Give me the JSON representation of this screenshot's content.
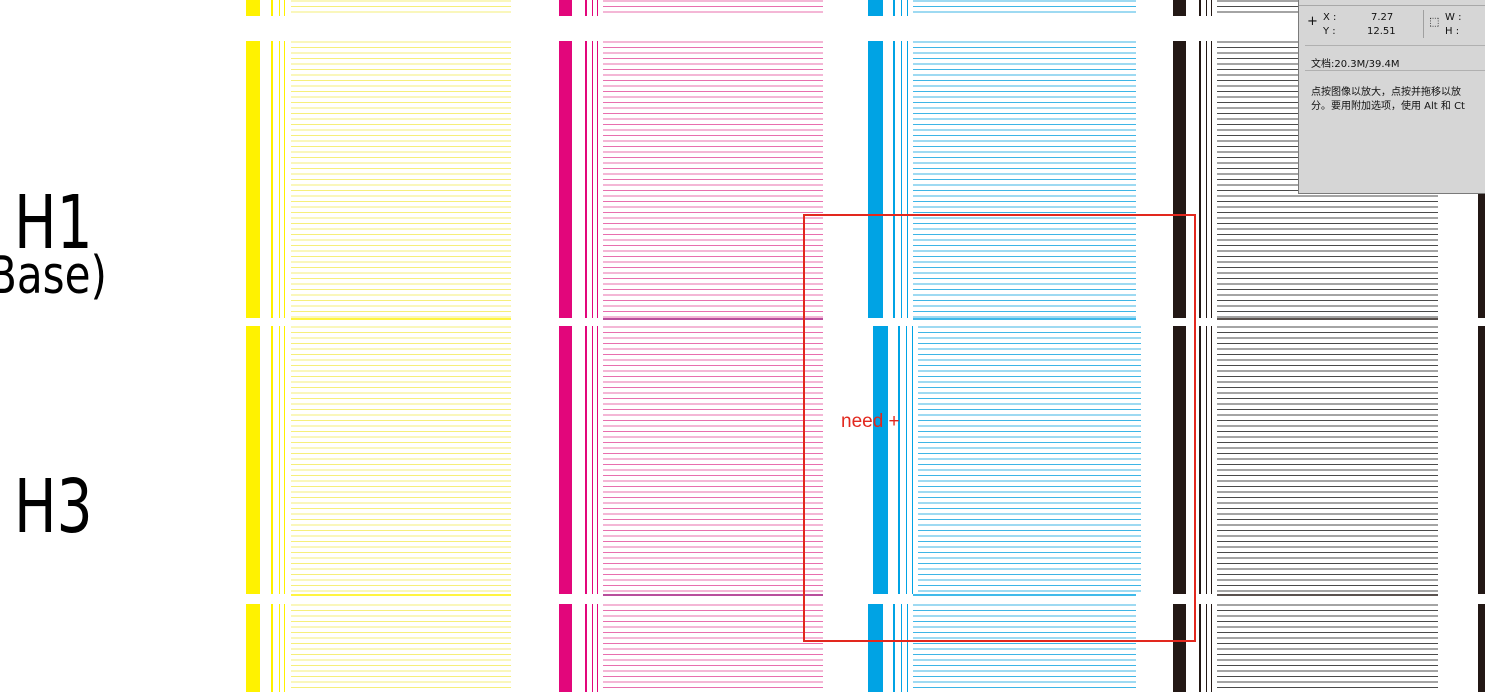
{
  "labels": {
    "h1": "H1",
    "base": "Base)",
    "h3": "H3"
  },
  "stripe_colors": {
    "yellow": "#fff200",
    "yellow_thin": "#f6ef7a",
    "magenta": "#e2067b",
    "magenta_thin": "#e86fae",
    "magenta_seam": "#a0147c",
    "cyan": "#00a3e4",
    "cyan_thin": "#3db5e6",
    "black": "#231815",
    "black_thin": "#4a4a4a"
  },
  "info_panel": {
    "x_label": "X :",
    "x_value": "7.27",
    "y_label": "Y :",
    "y_value": "12.51",
    "w_label": "W :",
    "h_label": "H :",
    "doc": "文档:20.3M/39.4M",
    "help_line1": "点按图像以放大，点按并拖移以放",
    "help_line2": "分。要用附加选项，使用 Alt 和 Ct",
    "coord_icon": "crosshair-icon",
    "size_icon": "selection-size-icon"
  },
  "annotation": {
    "note": "need +",
    "color": "#e2281e"
  }
}
